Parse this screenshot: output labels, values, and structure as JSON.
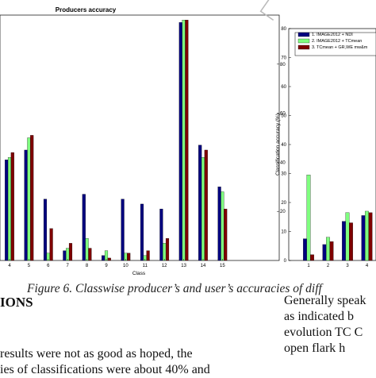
{
  "chart_data": [
    {
      "type": "bar",
      "title": "Producers accuracy",
      "xlabel": "Class",
      "ylabel": "",
      "categories": [
        "4",
        "5",
        "6",
        "7",
        "8",
        "9",
        "10",
        "11",
        "12",
        "13",
        "14",
        "15"
      ],
      "ylim": [
        0,
        100
      ],
      "yticks_right": [
        "20",
        "40",
        "60",
        "80"
      ],
      "series": [
        {
          "name": "",
          "color": "#00007f",
          "values": [
            41,
            45,
            25,
            4,
            27,
            2,
            25,
            23,
            21,
            97,
            47,
            30
          ]
        },
        {
          "name": "",
          "color": "#7fff7f",
          "values": [
            42,
            50,
            3,
            5,
            9,
            4,
            3,
            2,
            7,
            98,
            42,
            28
          ]
        },
        {
          "name": "",
          "color": "#7f0000",
          "values": [
            44,
            51,
            13,
            7,
            5,
            1,
            3,
            4,
            9,
            98,
            45,
            21
          ]
        }
      ]
    },
    {
      "type": "bar",
      "title": "",
      "xlabel": "",
      "ylabel": "Classification accuracy (%)",
      "categories": [
        "1",
        "2",
        "3",
        "4"
      ],
      "ylim": [
        0,
        80
      ],
      "yticks": [
        "0",
        "10",
        "20",
        "30",
        "40",
        "50",
        "60",
        "70",
        "80"
      ],
      "legend_position": "top",
      "series": [
        {
          "name": "1. IMAGE2012 + NDI",
          "color": "#00007f",
          "values": [
            7.5,
            5.5,
            13.5,
            15.5
          ]
        },
        {
          "name": "2. IMAGE2012 + TCmean",
          "color": "#7fff7f",
          "values": [
            29.5,
            8,
            16.5,
            17
          ]
        },
        {
          "name": "3. TCmean + GR,WE mw&m",
          "color": "#7f0000",
          "values": [
            2,
            6.5,
            13,
            16.5
          ]
        }
      ]
    }
  ],
  "caption": "Figure 6. Classwise producer’s and user’s accuracies of diff",
  "heading": "IONS",
  "left_text": {
    "line1": "results were not as good as hoped, the",
    "line2": "ies of classifications were about 40% and"
  },
  "right_text": {
    "line1": "Generally speak",
    "line2": "as   indicated  b",
    "line3": "evolution  TC  C",
    "line4": "open   flark   h"
  }
}
